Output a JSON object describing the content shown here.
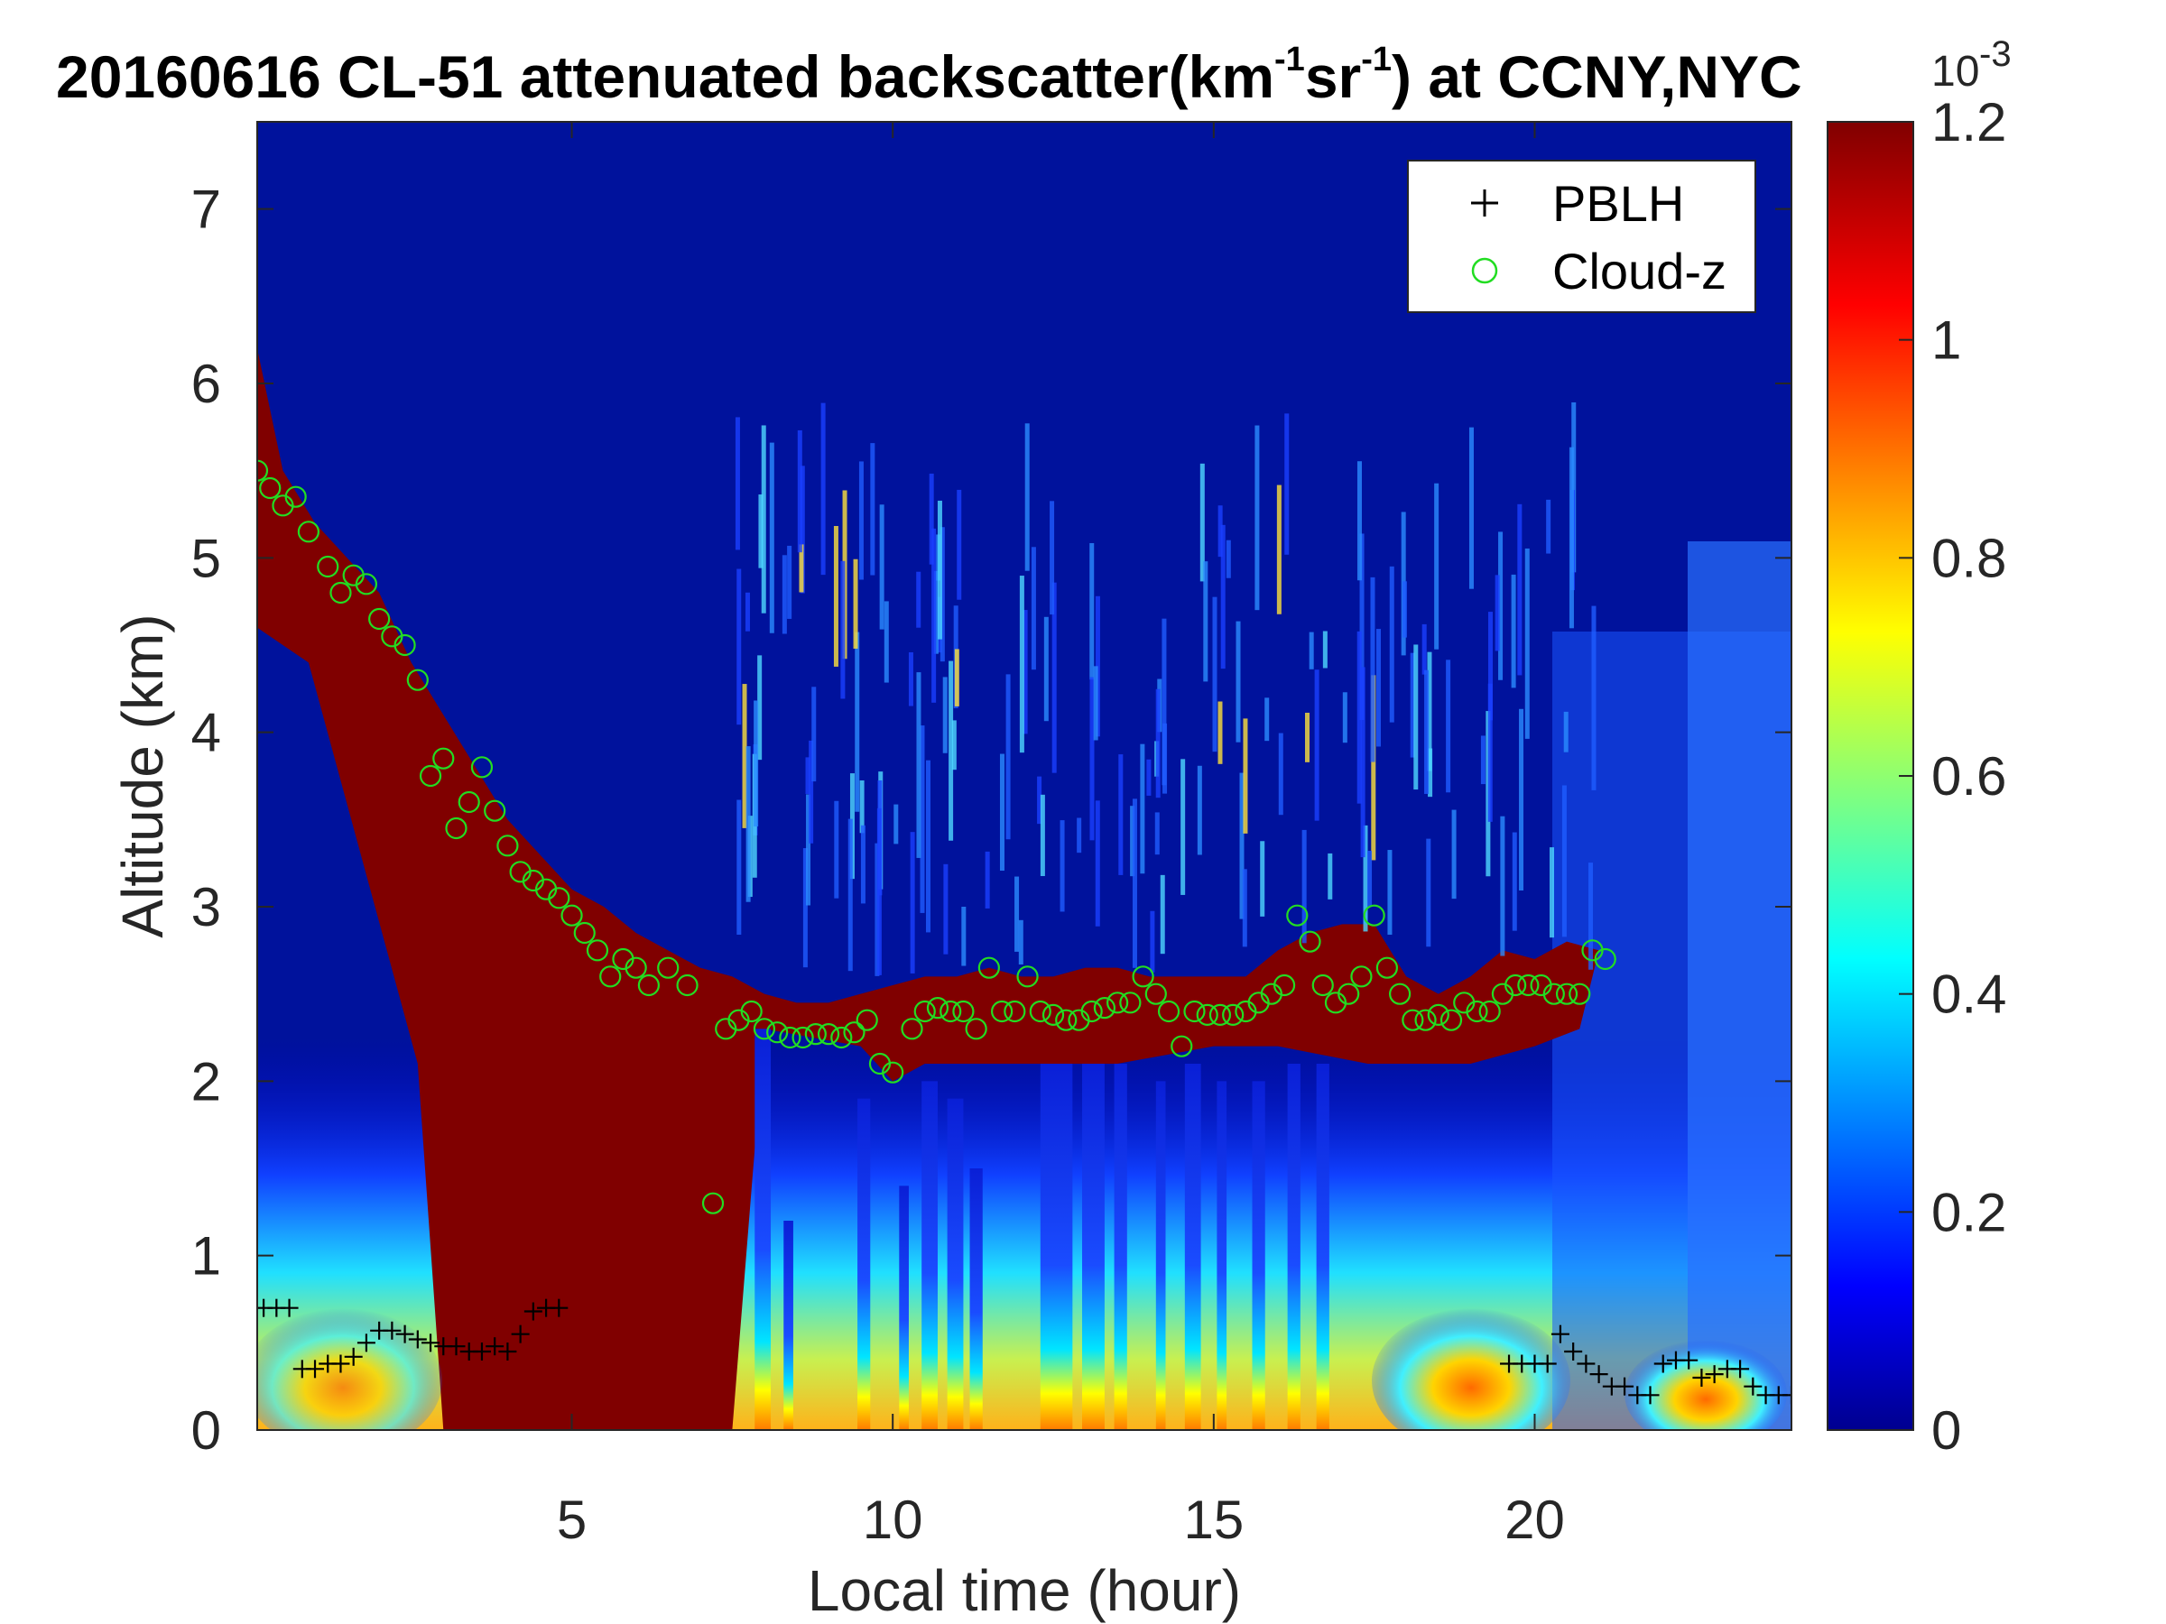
{
  "chart_data": {
    "type": "heatmap",
    "title_parts": [
      "20160616  CL-51 attenuated backscatter(km",
      "-1",
      "sr",
      "-1",
      ") at CCNY,NYC"
    ],
    "xlabel": "Local time (hour)",
    "ylabel": "Altitude (km)",
    "xlim": [
      0.1,
      24
    ],
    "ylim": [
      0,
      7.5
    ],
    "x_ticks": [
      "5",
      "10",
      "15",
      "20"
    ],
    "y_ticks": [
      "0",
      "1",
      "2",
      "3",
      "4",
      "5",
      "6",
      "7"
    ],
    "colorbar": {
      "colormap": "jet",
      "range": [
        0,
        0.0012
      ],
      "exponent_label": "10",
      "exponent_power": "-3",
      "ticks": [
        "0",
        "0.2",
        "0.4",
        "0.6",
        "0.8",
        "1",
        "1.2"
      ],
      "colors": [
        "#00008f",
        "#0000ff",
        "#00ffff",
        "#ffff00",
        "#ff0000",
        "#800000"
      ]
    },
    "legend": {
      "location": "top-right",
      "entries": [
        {
          "marker": "+",
          "label": "PBLH",
          "color": "#000000"
        },
        {
          "marker": "o",
          "label": "Cloud-z",
          "color": "#22dd22"
        }
      ]
    },
    "layer_top_km": [
      [
        0.1,
        6.2
      ],
      [
        0.5,
        5.5
      ],
      [
        1.0,
        5.2
      ],
      [
        1.5,
        5.0
      ],
      [
        2.0,
        4.8
      ],
      [
        2.5,
        4.4
      ],
      [
        3.0,
        4.1
      ],
      [
        3.5,
        3.8
      ],
      [
        4.0,
        3.5
      ],
      [
        4.5,
        3.3
      ],
      [
        5.0,
        3.1
      ],
      [
        5.5,
        3.0
      ],
      [
        6.0,
        2.85
      ],
      [
        6.5,
        2.75
      ],
      [
        7.0,
        2.65
      ],
      [
        7.5,
        2.6
      ],
      [
        8.0,
        2.5
      ],
      [
        8.5,
        2.45
      ],
      [
        9.0,
        2.45
      ],
      [
        9.5,
        2.5
      ],
      [
        10.0,
        2.55
      ],
      [
        10.5,
        2.6
      ],
      [
        11.0,
        2.6
      ],
      [
        11.5,
        2.65
      ],
      [
        12.0,
        2.6
      ],
      [
        12.5,
        2.6
      ],
      [
        13.0,
        2.65
      ],
      [
        13.5,
        2.65
      ],
      [
        14.0,
        2.6
      ],
      [
        14.5,
        2.6
      ],
      [
        15.0,
        2.6
      ],
      [
        15.5,
        2.6
      ],
      [
        16.0,
        2.75
      ],
      [
        16.5,
        2.85
      ],
      [
        17.0,
        2.9
      ],
      [
        17.5,
        2.9
      ],
      [
        18.0,
        2.6
      ],
      [
        18.5,
        2.5
      ],
      [
        19.0,
        2.6
      ],
      [
        19.5,
        2.75
      ],
      [
        20.0,
        2.7
      ],
      [
        20.5,
        2.8
      ],
      [
        21.0,
        2.75
      ]
    ],
    "layer_bottom_km": [
      [
        2.6,
        2.1
      ],
      [
        3.0,
        0.0
      ],
      [
        7.5,
        0.0
      ],
      [
        8.0,
        2.3
      ],
      [
        9.5,
        2.2
      ],
      [
        10.0,
        2.0
      ],
      [
        10.5,
        2.1
      ],
      [
        11.5,
        2.1
      ],
      [
        12.0,
        2.1
      ],
      [
        13.5,
        2.1
      ],
      [
        15.0,
        2.2
      ],
      [
        16.0,
        2.2
      ],
      [
        17.4,
        2.1
      ],
      [
        18.0,
        2.1
      ],
      [
        19.0,
        2.1
      ],
      [
        20.0,
        2.2
      ],
      [
        20.7,
        2.3
      ]
    ],
    "pblh_series": {
      "name": "PBLH",
      "points": [
        [
          0.2,
          0.7
        ],
        [
          0.4,
          0.7
        ],
        [
          0.6,
          0.7
        ],
        [
          0.8,
          0.35
        ],
        [
          1.0,
          0.35
        ],
        [
          1.2,
          0.38
        ],
        [
          1.4,
          0.38
        ],
        [
          1.6,
          0.42
        ],
        [
          1.8,
          0.5
        ],
        [
          2.0,
          0.57
        ],
        [
          2.2,
          0.57
        ],
        [
          2.4,
          0.55
        ],
        [
          2.6,
          0.52
        ],
        [
          2.8,
          0.5
        ],
        [
          3.0,
          0.48
        ],
        [
          3.2,
          0.48
        ],
        [
          3.4,
          0.45
        ],
        [
          3.6,
          0.45
        ],
        [
          3.8,
          0.48
        ],
        [
          4.0,
          0.45
        ],
        [
          4.2,
          0.55
        ],
        [
          4.4,
          0.68
        ],
        [
          4.6,
          0.7
        ],
        [
          4.8,
          0.7
        ],
        [
          19.6,
          0.38
        ],
        [
          19.8,
          0.38
        ],
        [
          20.0,
          0.38
        ],
        [
          20.2,
          0.38
        ],
        [
          20.4,
          0.55
        ],
        [
          20.6,
          0.45
        ],
        [
          20.8,
          0.38
        ],
        [
          21.0,
          0.32
        ],
        [
          21.2,
          0.25
        ],
        [
          21.4,
          0.25
        ],
        [
          21.6,
          0.2
        ],
        [
          21.8,
          0.2
        ],
        [
          22.0,
          0.38
        ],
        [
          22.2,
          0.4
        ],
        [
          22.4,
          0.4
        ],
        [
          22.6,
          0.3
        ],
        [
          22.8,
          0.32
        ],
        [
          23.0,
          0.35
        ],
        [
          23.2,
          0.35
        ],
        [
          23.4,
          0.25
        ],
        [
          23.6,
          0.2
        ],
        [
          23.8,
          0.2
        ],
        [
          24.0,
          0.2
        ]
      ]
    },
    "cloud_z_series": {
      "name": "Cloud-z",
      "points": [
        [
          0.1,
          5.5
        ],
        [
          0.3,
          5.4
        ],
        [
          0.5,
          5.3
        ],
        [
          0.7,
          5.35
        ],
        [
          0.9,
          5.15
        ],
        [
          1.2,
          4.95
        ],
        [
          1.4,
          4.8
        ],
        [
          1.6,
          4.9
        ],
        [
          1.8,
          4.85
        ],
        [
          2.0,
          4.65
        ],
        [
          2.2,
          4.55
        ],
        [
          2.4,
          4.5
        ],
        [
          2.6,
          4.3
        ],
        [
          2.8,
          3.75
        ],
        [
          3.0,
          3.85
        ],
        [
          3.2,
          3.45
        ],
        [
          3.4,
          3.6
        ],
        [
          3.6,
          3.8
        ],
        [
          3.8,
          3.55
        ],
        [
          4.0,
          3.35
        ],
        [
          4.2,
          3.2
        ],
        [
          4.4,
          3.15
        ],
        [
          4.6,
          3.1
        ],
        [
          4.8,
          3.05
        ],
        [
          5.0,
          2.95
        ],
        [
          5.2,
          2.85
        ],
        [
          5.4,
          2.75
        ],
        [
          5.6,
          2.6
        ],
        [
          5.8,
          2.7
        ],
        [
          6.0,
          2.65
        ],
        [
          6.2,
          2.55
        ],
        [
          6.5,
          2.65
        ],
        [
          6.8,
          2.55
        ],
        [
          7.2,
          1.3
        ],
        [
          7.4,
          2.3
        ],
        [
          7.6,
          2.35
        ],
        [
          7.8,
          2.4
        ],
        [
          8.0,
          2.3
        ],
        [
          8.2,
          2.28
        ],
        [
          8.4,
          2.25
        ],
        [
          8.6,
          2.25
        ],
        [
          8.8,
          2.27
        ],
        [
          9.0,
          2.27
        ],
        [
          9.2,
          2.25
        ],
        [
          9.4,
          2.28
        ],
        [
          9.6,
          2.35
        ],
        [
          9.8,
          2.1
        ],
        [
          10.0,
          2.05
        ],
        [
          10.3,
          2.3
        ],
        [
          10.5,
          2.4
        ],
        [
          10.7,
          2.42
        ],
        [
          10.9,
          2.4
        ],
        [
          11.1,
          2.4
        ],
        [
          11.3,
          2.3
        ],
        [
          11.5,
          2.65
        ],
        [
          11.7,
          2.4
        ],
        [
          11.9,
          2.4
        ],
        [
          12.1,
          2.6
        ],
        [
          12.3,
          2.4
        ],
        [
          12.5,
          2.38
        ],
        [
          12.7,
          2.35
        ],
        [
          12.9,
          2.35
        ],
        [
          13.1,
          2.4
        ],
        [
          13.3,
          2.42
        ],
        [
          13.5,
          2.45
        ],
        [
          13.7,
          2.45
        ],
        [
          13.9,
          2.6
        ],
        [
          14.1,
          2.5
        ],
        [
          14.3,
          2.4
        ],
        [
          14.5,
          2.2
        ],
        [
          14.7,
          2.4
        ],
        [
          14.9,
          2.38
        ],
        [
          15.1,
          2.38
        ],
        [
          15.3,
          2.38
        ],
        [
          15.5,
          2.4
        ],
        [
          15.7,
          2.45
        ],
        [
          15.9,
          2.5
        ],
        [
          16.1,
          2.55
        ],
        [
          16.3,
          2.95
        ],
        [
          16.5,
          2.8
        ],
        [
          16.7,
          2.55
        ],
        [
          16.9,
          2.45
        ],
        [
          17.1,
          2.5
        ],
        [
          17.3,
          2.6
        ],
        [
          17.5,
          2.95
        ],
        [
          17.7,
          2.65
        ],
        [
          17.9,
          2.5
        ],
        [
          18.1,
          2.35
        ],
        [
          18.3,
          2.35
        ],
        [
          18.5,
          2.38
        ],
        [
          18.7,
          2.35
        ],
        [
          18.9,
          2.45
        ],
        [
          19.1,
          2.4
        ],
        [
          19.3,
          2.4
        ],
        [
          19.5,
          2.5
        ],
        [
          19.7,
          2.55
        ],
        [
          19.9,
          2.55
        ],
        [
          20.1,
          2.55
        ],
        [
          20.3,
          2.5
        ],
        [
          20.5,
          2.5
        ],
        [
          20.7,
          2.5
        ],
        [
          20.9,
          2.75
        ],
        [
          21.1,
          2.7
        ]
      ]
    }
  }
}
